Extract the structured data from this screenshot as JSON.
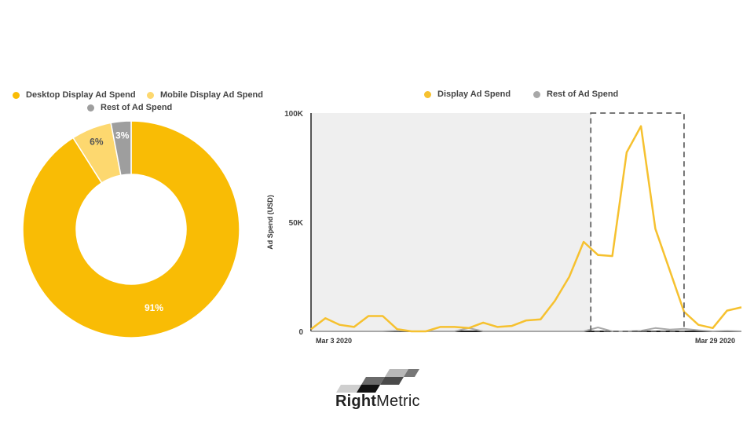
{
  "colors": {
    "desktop": "#F9BC05",
    "mobile": "#FDD86F",
    "rest": "#9E9E9E",
    "display_line": "#F6C12F",
    "rest_line": "#A8A8A8",
    "shade": "#EFEFEF",
    "axis": "#222222"
  },
  "chart_data": [
    {
      "type": "pie",
      "donut": true,
      "legend": [
        {
          "label": "Desktop Display Ad Spend",
          "color_key": "desktop"
        },
        {
          "label": "Mobile Display Ad Spend",
          "color_key": "mobile"
        },
        {
          "label": "Rest of Ad Spend",
          "color_key": "rest"
        }
      ],
      "slices": [
        {
          "name": "Desktop Display Ad Spend",
          "value": 91,
          "label": "91%",
          "color_key": "desktop"
        },
        {
          "name": "Mobile Display Ad Spend",
          "value": 6,
          "label": "6%",
          "color_key": "mobile"
        },
        {
          "name": "Rest of Ad Spend",
          "value": 3,
          "label": "3%",
          "color_key": "rest"
        }
      ]
    },
    {
      "type": "line",
      "ylabel": "Ad Spend (USD)",
      "ylim": [
        0,
        100000
      ],
      "yticks": [
        {
          "value": 0,
          "label": "0"
        },
        {
          "value": 50000,
          "label": "50K"
        },
        {
          "value": 100000,
          "label": "100K"
        }
      ],
      "xlim": [
        0,
        30
      ],
      "x_tick_labels": [
        "Mar 3 2020",
        "Mar 29 2020"
      ],
      "shaded_region": [
        0,
        19.5
      ],
      "highlight_box": [
        19.5,
        26
      ],
      "legend": [
        {
          "label": "Display Ad Spend",
          "color_key": "display_line"
        },
        {
          "label": "Rest of Ad Spend",
          "color_key": "rest_line"
        }
      ],
      "series": [
        {
          "name": "Display Ad Spend",
          "color_key": "display_line",
          "values": [
            1000,
            6000,
            3000,
            2000,
            7000,
            7000,
            1000,
            0,
            0,
            2000,
            2000,
            1500,
            4000,
            2000,
            2500,
            5000,
            5500,
            14000,
            25000,
            41000,
            35000,
            34500,
            82000,
            94000,
            47000,
            28000,
            9000,
            3000,
            1500,
            9500,
            11000
          ]
        },
        {
          "name": "Rest of Ad Spend",
          "color_key": "rest_line",
          "values": [
            0,
            0,
            0,
            0,
            0,
            0,
            300,
            0,
            0,
            0,
            0,
            1500,
            0,
            0,
            0,
            0,
            0,
            0,
            0,
            0,
            1800,
            0,
            0,
            300,
            1500,
            800,
            1200,
            500,
            0,
            200,
            0
          ]
        }
      ]
    }
  ],
  "logo": {
    "bold": "Right",
    "regular": "Metric"
  }
}
